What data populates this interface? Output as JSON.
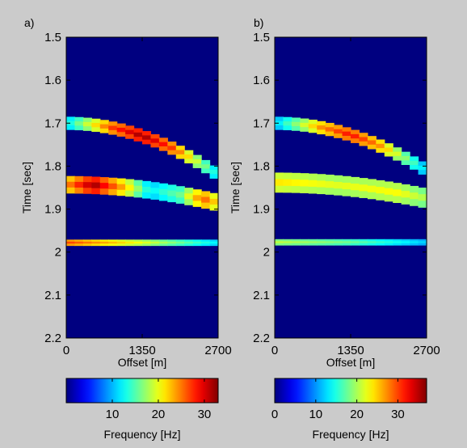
{
  "chart_data": [
    {
      "type": "heatmap",
      "panel_label": "a)",
      "title": "",
      "xlabel": "Offset [m]",
      "ylabel": "Time [sec]",
      "xlim": [
        0,
        2700
      ],
      "ylim": [
        1.5,
        2.2
      ],
      "y_reversed": true,
      "x_ticks": [
        "0",
        "1350",
        "2700"
      ],
      "y_ticks": [
        "1.5",
        "1.6",
        "1.7",
        "1.8",
        "1.9",
        "2",
        "2.1",
        "2.2"
      ],
      "background_frequency_hz": 0,
      "events": [
        {
          "name": "",
          "time_at_zero_offset_s": 1.7,
          "time_at_max_offset_s": 1.82,
          "thickness_s": 0.03,
          "frequency_profile_hz": [
            [
              0,
              12
            ],
            [
              0.3,
              27
            ],
            [
              0.5,
              32
            ],
            [
              0.7,
              27
            ],
            [
              1,
              12
            ]
          ]
        },
        {
          "name": "",
          "time_at_zero_offset_s": 1.843,
          "time_at_max_offset_s": 1.885,
          "thickness_s": 0.04,
          "frequency_profile_hz": [
            [
              0,
              24
            ],
            [
              0.18,
              32
            ],
            [
              0.4,
              22
            ],
            [
              0.55,
              12
            ],
            [
              0.75,
              16
            ],
            [
              0.9,
              26
            ],
            [
              1,
              21
            ]
          ]
        },
        {
          "name": "",
          "time_at_zero_offset_s": 1.978,
          "time_at_max_offset_s": 1.978,
          "thickness_s": 0.014,
          "frequency_profile_hz": [
            [
              0,
              27
            ],
            [
              0.5,
              20
            ],
            [
              1,
              12
            ]
          ]
        }
      ],
      "colorbar": {
        "label": "Frequency [Hz]",
        "range": [
          0,
          33
        ],
        "ticks": [
          "10",
          "20",
          "30"
        ],
        "tick_values": [
          10,
          20,
          30
        ],
        "colormap": "jet"
      }
    },
    {
      "type": "heatmap",
      "panel_label": "b)",
      "title": "",
      "xlabel": "Offset [m]",
      "ylabel": "Time [sec]",
      "xlim": [
        0,
        2700
      ],
      "ylim": [
        1.5,
        2.2
      ],
      "y_reversed": true,
      "x_ticks": [
        "0",
        "1350",
        "2700"
      ],
      "y_ticks": [
        "1.5",
        "1.6",
        "1.7",
        "1.8",
        "1.9",
        "2",
        "2.1",
        "2.2"
      ],
      "background_frequency_hz": 0,
      "events": [
        {
          "name": "",
          "time_at_zero_offset_s": 1.7,
          "time_at_max_offset_s": 1.81,
          "thickness_s": 0.03,
          "frequency_profile_hz": [
            [
              0,
              12
            ],
            [
              0.3,
              27
            ],
            [
              0.5,
              32
            ],
            [
              0.7,
              27
            ],
            [
              1,
              12
            ]
          ]
        },
        {
          "name": "",
          "time_at_zero_offset_s": 1.838,
          "time_at_max_offset_s": 1.875,
          "thickness_s": 0.046,
          "frequency_profile_hz": [
            [
              0,
              24
            ],
            [
              0.4,
              22
            ],
            [
              0.8,
              23
            ],
            [
              1,
              20
            ]
          ]
        },
        {
          "name": "",
          "time_at_zero_offset_s": 1.977,
          "time_at_max_offset_s": 1.977,
          "thickness_s": 0.014,
          "frequency_profile_hz": [
            [
              0,
              21
            ],
            [
              0.5,
              18
            ],
            [
              1,
              12
            ]
          ]
        }
      ],
      "colorbar": {
        "label": "Frequency [Hz]",
        "range": [
          0,
          37
        ],
        "ticks": [
          "0",
          "10",
          "20",
          "30"
        ],
        "tick_values": [
          0,
          10,
          20,
          30
        ],
        "colormap": "jet"
      }
    }
  ]
}
